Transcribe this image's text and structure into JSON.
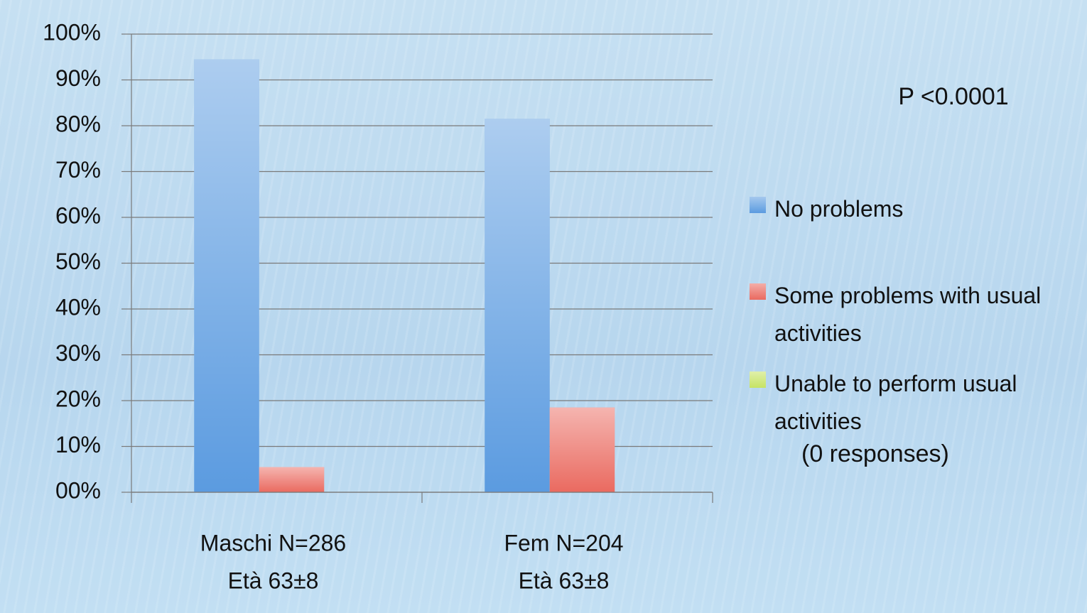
{
  "chart_data": {
    "type": "bar",
    "categories": [
      [
        "Maschi N=286",
        "Età 63±8"
      ],
      [
        "Fem N=204",
        "Età 63±8"
      ]
    ],
    "series": [
      {
        "name": "No problems",
        "color": "#5b9be0",
        "values": [
          94.5,
          81.5
        ]
      },
      {
        "name": "Some problems with usual activities",
        "color": "#ea6a60",
        "values": [
          5.5,
          18.5
        ]
      },
      {
        "name": "Unable to perform usual activities",
        "color": "#c6e364",
        "values": [
          0,
          0
        ]
      }
    ],
    "legend_note": "(0 responses)",
    "annotation": "P <0.0001",
    "ylim": [
      0,
      100
    ],
    "yticks": [
      {
        "value": 0,
        "label": "00%"
      },
      {
        "value": 10,
        "label": "10%"
      },
      {
        "value": 20,
        "label": "20%"
      },
      {
        "value": 30,
        "label": "30%"
      },
      {
        "value": 40,
        "label": "40%"
      },
      {
        "value": 50,
        "label": "50%"
      },
      {
        "value": 60,
        "label": "60%"
      },
      {
        "value": 70,
        "label": "70%"
      },
      {
        "value": 80,
        "label": "80%"
      },
      {
        "value": 90,
        "label": "90%"
      },
      {
        "value": 100,
        "label": "100%"
      }
    ],
    "grid": true,
    "legend": "right"
  }
}
